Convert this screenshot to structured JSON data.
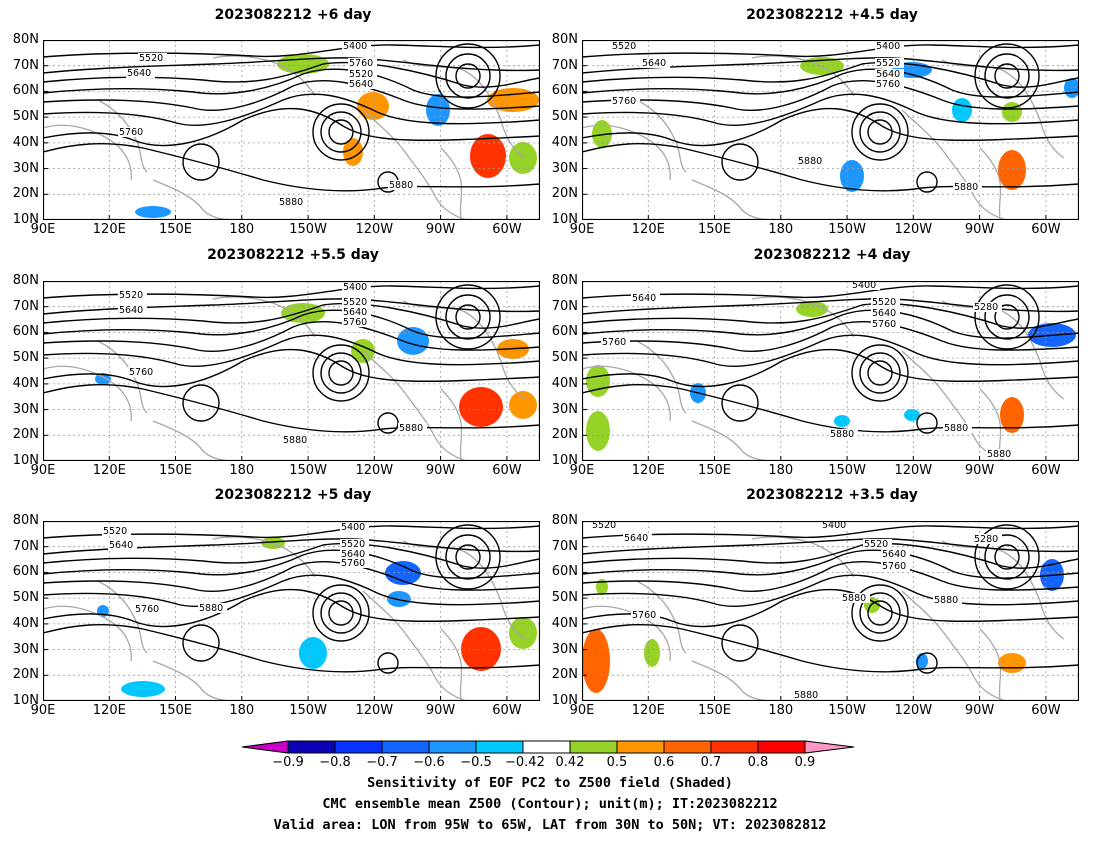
{
  "panels": [
    {
      "title": "2023082212 +6 day"
    },
    {
      "title": "2023082212 +4.5 day"
    },
    {
      "title": "2023082212 +5.5 day"
    },
    {
      "title": "2023082212 +4 day"
    },
    {
      "title": "2023082212 +5 day"
    },
    {
      "title": "2023082212 +3.5 day"
    }
  ],
  "lat_labels": [
    "80N",
    "70N",
    "60N",
    "50N",
    "40N",
    "30N",
    "20N",
    "10N"
  ],
  "lon_labels": [
    "90E",
    "120E",
    "150E",
    "180",
    "150W",
    "120W",
    "90W",
    "60W"
  ],
  "contour_labels": {
    "p0": [
      "5400",
      "5520",
      "5640",
      "5760",
      "5520",
      "5640",
      "5760",
      "5880",
      "5880"
    ],
    "p1": [
      "5520",
      "5400",
      "5640",
      "5520",
      "5640",
      "5760",
      "5760",
      "5880",
      "5880"
    ],
    "p2": [
      "5400",
      "5520",
      "5640",
      "5520",
      "5640",
      "5760",
      "5760",
      "5880",
      "5880"
    ],
    "p3": [
      "5400",
      "5640",
      "5520",
      "5640",
      "5760",
      "5280",
      "5760",
      "5880",
      "5880",
      "5880"
    ],
    "p4": [
      "5520",
      "5400",
      "5640",
      "5520",
      "5640",
      "5760",
      "5760",
      "5880"
    ],
    "p5": [
      "5520",
      "5400",
      "5640",
      "5520",
      "5640",
      "5760",
      "5280",
      "5880",
      "5880",
      "5760",
      "5880"
    ]
  },
  "colorbar": {
    "labels": [
      "−0.9",
      "−0.8",
      "−0.7",
      "−0.6",
      "−0.5",
      "−0.42",
      "0.42",
      "0.5",
      "0.6",
      "0.7",
      "0.8",
      "0.9"
    ],
    "colors": [
      "#0a00b4",
      "#0a32ff",
      "#1464ff",
      "#1e96ff",
      "#00c8ff",
      "#ffffff",
      "#96d228",
      "#ff9600",
      "#ff6400",
      "#ff3200",
      "#ff0000"
    ],
    "low_color": "#c800c8",
    "high_color": "#ff96c8"
  },
  "caption": {
    "line1": "Sensitivity of EOF PC2 to Z500 field (Shaded)",
    "line2": "CMC ensemble mean Z500 (Contour); unit(m); IT:2023082212",
    "line3": "Valid area: LON from 95W to 65W, LAT from 30N to 50N; VT: 2023082812"
  }
}
